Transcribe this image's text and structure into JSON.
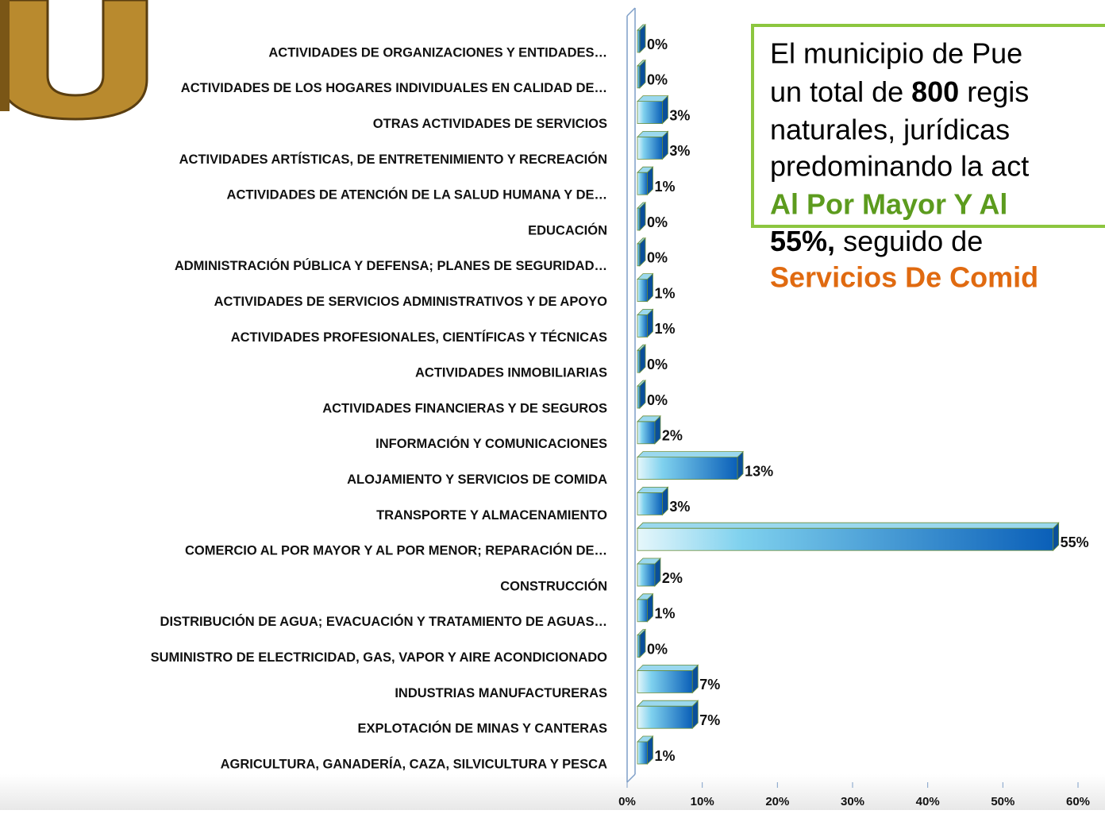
{
  "chart_data": {
    "type": "bar",
    "orientation": "horizontal",
    "categories": [
      "ACTIVIDADES DE ORGANIZACIONES Y ENTIDADES…",
      "ACTIVIDADES   DE LOS HOGARES INDIVIDUALES  EN CALIDAD DE…",
      "OTRAS ACTIVIDADES DE SERVICIOS",
      "ACTIVIDADES  ARTÍSTICAS, DE ENTRETENIMIENTO Y RECREACIÓN",
      "ACTIVIDADES DE ATENCIÓN DE LA SALUD  HUMANA Y DE…",
      "EDUCACIÓN",
      "ADMINISTRACIÓN  PÚBLICA Y DEFENSA;  PLANES  DE SEGURIDAD…",
      "ACTIVIDADES DE SERVICIOS ADMINISTRATIVOS  Y DE APOYO",
      "ACTIVIDADES PROFESIONALES, CIENTÍFICAS Y TÉCNICAS",
      "ACTIVIDADES  INMOBILIARIAS",
      "ACTIVIDADES  FINANCIERAS  Y DE SEGUROS",
      "INFORMACIÓN Y COMUNICACIONES",
      "ALOJAMIENTO Y SERVICIOS DE COMIDA",
      "TRANSPORTE Y ALMACENAMIENTO",
      "COMERCIO  AL POR MAYOR Y AL POR MENOR; REPARACIÓN  DE…",
      "CONSTRUCCIÓN",
      "DISTRIBUCIÓN DE AGUA; EVACUACIÓN Y TRATAMIENTO DE AGUAS…",
      "SUMINISTRO DE ELECTRICIDAD, GAS, VAPOR Y AIRE ACONDICIONADO",
      "INDUSTRIAS MANUFACTURERAS",
      "EXPLOTACIÓN DE MINAS Y CANTERAS",
      "AGRICULTURA, GANADERÍA,  CAZA, SILVICULTURA Y PESCA"
    ],
    "values": [
      0,
      0,
      3,
      3,
      1,
      0,
      0,
      1,
      1,
      0,
      0,
      2,
      13,
      3,
      55,
      2,
      1,
      0,
      7,
      7,
      1
    ],
    "value_labels": [
      "0%",
      "0%",
      "3%",
      "3%",
      "1%",
      "0%",
      "0%",
      "1%",
      "1%",
      "0%",
      "0%",
      "2%",
      "13%",
      "3%",
      "55%",
      "2%",
      "1%",
      "0%",
      "7%",
      "7%",
      "1%"
    ],
    "color": "#1a8fd6",
    "xlim": [
      0,
      60
    ],
    "xticks": [
      {
        "value": 0,
        "label": "0%"
      },
      {
        "value": 10,
        "label": "10%"
      },
      {
        "value": 20,
        "label": "20%"
      },
      {
        "value": 30,
        "label": "30%"
      },
      {
        "value": 40,
        "label": "40%"
      },
      {
        "value": 50,
        "label": "50%"
      },
      {
        "value": 60,
        "label": "60%"
      }
    ],
    "annotation": {
      "line1": "El municipio de Pue",
      "line2a": "un total de ",
      "line2b": "800",
      "line2c": " regis",
      "line3": "naturales,  jurídicas",
      "line4": "predominando la act",
      "line5": "Al Por Mayor Y Al",
      "line6a": "55%,",
      "line6b": "  seguido   de",
      "line7": "Servicios De Comid"
    }
  }
}
